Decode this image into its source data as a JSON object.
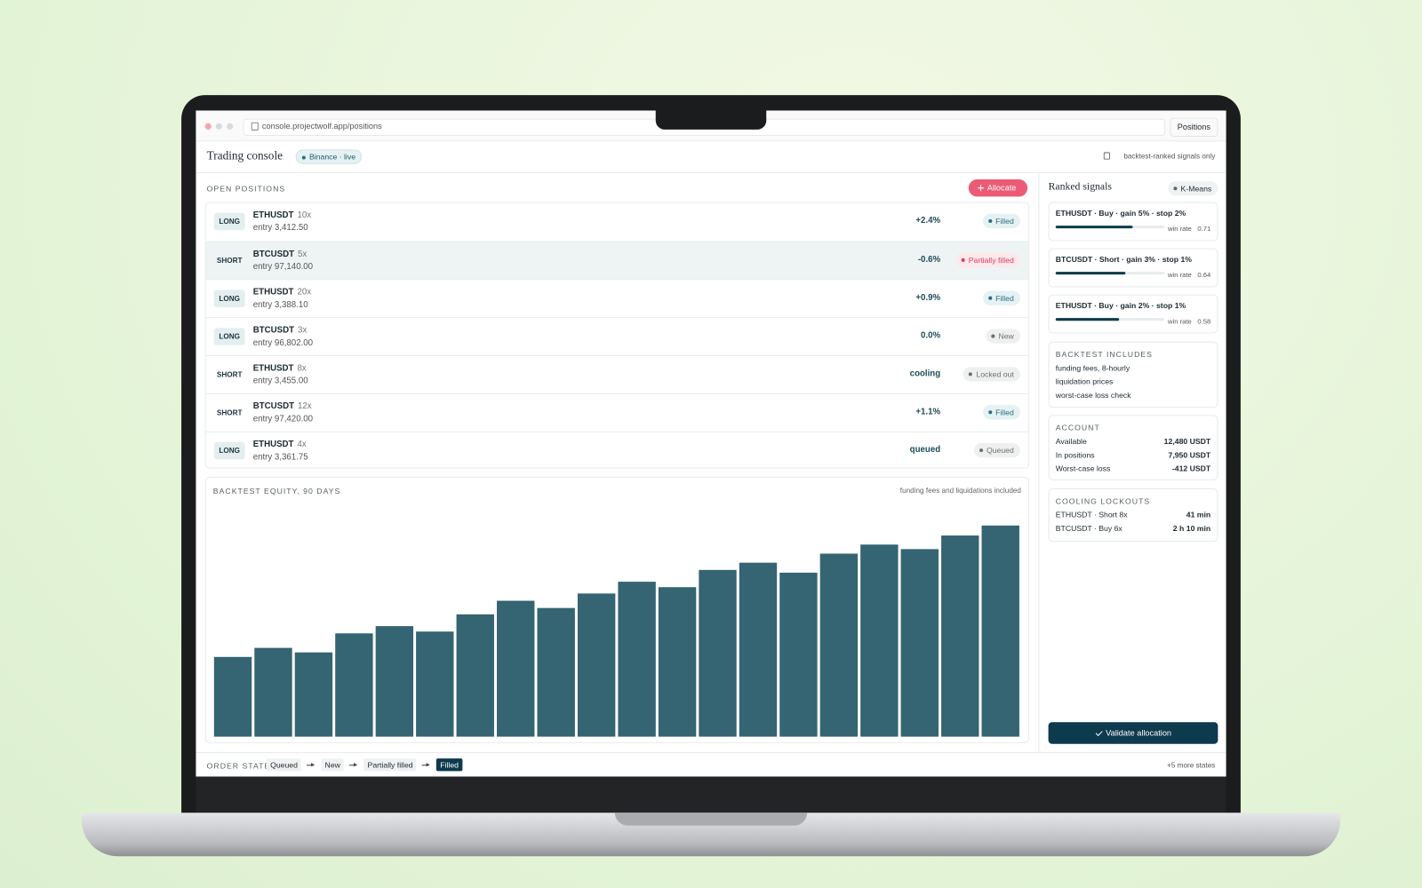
{
  "browser": {
    "url": "console.projectwolf.app/positions",
    "button": "Positions"
  },
  "header": {
    "title": "Trading console",
    "exchange": "Binance · live",
    "note": "backtest-ranked signals only"
  },
  "positions": {
    "label": "OPEN POSITIONS",
    "action": "Allocate",
    "rows": [
      {
        "side": "LONG",
        "symbol": "ETHUSDT",
        "leverage": "10x",
        "entry": "entry 3,412.50",
        "pnl": "+2.4%",
        "status": "Filled",
        "status_color": "#2a6f80"
      },
      {
        "side": "SHORT",
        "symbol": "BTCUSDT",
        "leverage": "5x",
        "entry": "entry 97,140.00",
        "pnl": "-0.6%",
        "status": "Partially filled",
        "status_color": "#d9405e",
        "highlight": true
      },
      {
        "side": "LONG",
        "symbol": "ETHUSDT",
        "leverage": "20x",
        "entry": "entry 3,388.10",
        "pnl": "+0.9%",
        "status": "Filled",
        "status_color": "#2a6f80"
      },
      {
        "side": "LONG",
        "symbol": "BTCUSDT",
        "leverage": "3x",
        "entry": "entry 96,802.00",
        "pnl": "0.0%",
        "status": "New",
        "status_color": "#6b6f72"
      },
      {
        "side": "SHORT",
        "symbol": "ETHUSDT",
        "leverage": "8x",
        "entry": "entry 3,455.00",
        "pnl": "cooling",
        "status": "Locked out",
        "status_color": "#6b6f72"
      },
      {
        "side": "SHORT",
        "symbol": "BTCUSDT",
        "leverage": "12x",
        "entry": "entry 97,420.00",
        "pnl": "+1.1%",
        "status": "Filled",
        "status_color": "#2a6f80"
      },
      {
        "side": "LONG",
        "symbol": "ETHUSDT",
        "leverage": "4x",
        "entry": "entry 3,361.75",
        "pnl": "queued",
        "status": "Queued",
        "status_color": "#6b6f72"
      }
    ]
  },
  "equity_chart": {
    "type": "bar",
    "title": "BACKTEST EQUITY, 90 DAYS",
    "note": "funding fees and liquidations included",
    "color": "#356473",
    "values": [
      88,
      98,
      93,
      114,
      122,
      116,
      135,
      150,
      142,
      158,
      171,
      165,
      184,
      192,
      181,
      202,
      212,
      207,
      222,
      233
    ]
  },
  "signals": {
    "title": "Ranked signals",
    "model": "K-Means",
    "win_rate_label": "win rate",
    "items": [
      {
        "text": "ETHUSDT · Buy · gain 5% · stop 2%",
        "win_rate": 0.71
      },
      {
        "text": "BTCUSDT · Short · gain 3% · stop 1%",
        "win_rate": 0.64
      },
      {
        "text": "ETHUSDT · Buy · gain 2% · stop 1%",
        "win_rate": 0.58
      }
    ]
  },
  "backtest": {
    "title": "BACKTEST INCLUDES",
    "items": [
      "funding fees, 8-hourly",
      "liquidation prices",
      "worst-case loss check"
    ]
  },
  "account": {
    "title": "ACCOUNT",
    "rows": [
      [
        "Available",
        "12,480 USDT"
      ],
      [
        "In positions",
        "7,950 USDT"
      ],
      [
        "Worst-case loss",
        "-412 USDT"
      ]
    ]
  },
  "lockouts": {
    "title": "COOLING LOCKOUTS",
    "rows": [
      [
        "ETHUSDT · Short 8x",
        "41 min"
      ],
      [
        "BTCUSDT · Buy 6x",
        "2 h 10 min"
      ]
    ]
  },
  "validate": "Validate allocation",
  "order_state": {
    "label": "ORDER STATE",
    "states": [
      "Queued",
      "New",
      "Partially filled",
      "Filled"
    ],
    "more": "+5 more states"
  }
}
